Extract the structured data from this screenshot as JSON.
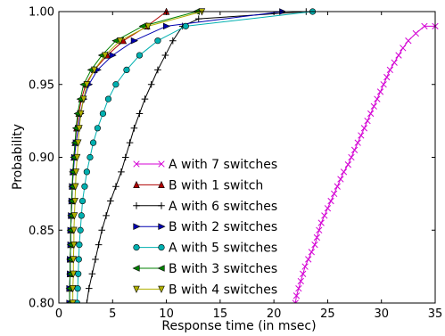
{
  "chart_data": {
    "type": "line",
    "xlabel": "Response time (in msec)",
    "ylabel": "Probability",
    "xlim": [
      0,
      35
    ],
    "ylim": [
      0.8,
      1.0
    ],
    "xticks": [
      0,
      5,
      10,
      15,
      20,
      25,
      30,
      35
    ],
    "yticks": [
      0.8,
      0.85,
      0.9,
      0.95,
      1.0
    ],
    "xtick_labels": [
      "0",
      "5",
      "10",
      "15",
      "20",
      "25",
      "30",
      "35"
    ],
    "ytick_labels": [
      "0.80",
      "0.85",
      "0.90",
      "0.95",
      "1.00"
    ],
    "grid": false,
    "legend_position": "center",
    "series": [
      {
        "name": "A with 7 switches",
        "color": "#d400d4",
        "marker": "x",
        "points": [
          [
            22.0,
            0.8
          ],
          [
            22.1,
            0.805
          ],
          [
            22.3,
            0.81
          ],
          [
            22.5,
            0.815
          ],
          [
            22.7,
            0.82
          ],
          [
            22.9,
            0.825
          ],
          [
            23.2,
            0.83
          ],
          [
            23.5,
            0.835
          ],
          [
            23.8,
            0.84
          ],
          [
            24.0,
            0.845
          ],
          [
            24.2,
            0.85
          ],
          [
            24.4,
            0.855
          ],
          [
            24.7,
            0.86
          ],
          [
            25.0,
            0.865
          ],
          [
            25.3,
            0.87
          ],
          [
            25.6,
            0.875
          ],
          [
            25.9,
            0.88
          ],
          [
            26.2,
            0.885
          ],
          [
            26.5,
            0.89
          ],
          [
            26.9,
            0.895
          ],
          [
            27.2,
            0.9
          ],
          [
            27.5,
            0.905
          ],
          [
            27.8,
            0.91
          ],
          [
            28.1,
            0.915
          ],
          [
            28.4,
            0.92
          ],
          [
            28.7,
            0.925
          ],
          [
            29.0,
            0.93
          ],
          [
            29.3,
            0.935
          ],
          [
            29.6,
            0.94
          ],
          [
            29.9,
            0.945
          ],
          [
            30.2,
            0.95
          ],
          [
            30.5,
            0.955
          ],
          [
            30.8,
            0.96
          ],
          [
            31.2,
            0.965
          ],
          [
            31.6,
            0.97
          ],
          [
            32.0,
            0.975
          ],
          [
            32.5,
            0.98
          ],
          [
            33.2,
            0.985
          ],
          [
            34.0,
            0.99
          ],
          [
            35.0,
            0.99
          ]
        ]
      },
      {
        "name": "B with 1 switch",
        "color": "#b00000",
        "marker": "^",
        "points": [
          [
            1.0,
            0.8
          ],
          [
            1.0,
            0.81
          ],
          [
            1.05,
            0.82
          ],
          [
            1.05,
            0.83
          ],
          [
            1.1,
            0.84
          ],
          [
            1.1,
            0.85
          ],
          [
            1.15,
            0.86
          ],
          [
            1.2,
            0.87
          ],
          [
            1.25,
            0.88
          ],
          [
            1.3,
            0.89
          ],
          [
            1.4,
            0.9
          ],
          [
            1.5,
            0.91
          ],
          [
            1.65,
            0.92
          ],
          [
            1.85,
            0.93
          ],
          [
            2.1,
            0.94
          ],
          [
            2.5,
            0.95
          ],
          [
            3.3,
            0.96
          ],
          [
            4.5,
            0.97
          ],
          [
            6.0,
            0.98
          ],
          [
            8.2,
            0.99
          ],
          [
            10.0,
            1.0
          ]
        ]
      },
      {
        "name": "A with 6 switches",
        "color": "#000000",
        "marker": "+",
        "points": [
          [
            2.6,
            0.8
          ],
          [
            2.8,
            0.81
          ],
          [
            3.1,
            0.82
          ],
          [
            3.4,
            0.83
          ],
          [
            3.7,
            0.84
          ],
          [
            4.0,
            0.85
          ],
          [
            4.4,
            0.86
          ],
          [
            4.8,
            0.87
          ],
          [
            5.3,
            0.88
          ],
          [
            5.8,
            0.89
          ],
          [
            6.2,
            0.9
          ],
          [
            6.6,
            0.91
          ],
          [
            7.0,
            0.92
          ],
          [
            7.5,
            0.93
          ],
          [
            8.0,
            0.94
          ],
          [
            8.6,
            0.95
          ],
          [
            9.2,
            0.96
          ],
          [
            9.9,
            0.97
          ],
          [
            10.6,
            0.98
          ],
          [
            11.5,
            0.99
          ],
          [
            13.0,
            0.995
          ],
          [
            23.0,
            1.0
          ]
        ]
      },
      {
        "name": "B with 2 switches",
        "color": "#0000b0",
        "marker": ">",
        "points": [
          [
            1.0,
            0.8
          ],
          [
            1.0,
            0.81
          ],
          [
            1.05,
            0.82
          ],
          [
            1.05,
            0.83
          ],
          [
            1.1,
            0.84
          ],
          [
            1.1,
            0.85
          ],
          [
            1.15,
            0.86
          ],
          [
            1.2,
            0.87
          ],
          [
            1.25,
            0.88
          ],
          [
            1.35,
            0.89
          ],
          [
            1.45,
            0.9
          ],
          [
            1.6,
            0.91
          ],
          [
            1.8,
            0.92
          ],
          [
            2.0,
            0.93
          ],
          [
            2.3,
            0.94
          ],
          [
            2.8,
            0.95
          ],
          [
            3.6,
            0.96
          ],
          [
            5.0,
            0.97
          ],
          [
            7.0,
            0.98
          ],
          [
            10.0,
            0.99
          ],
          [
            20.8,
            1.0
          ]
        ]
      },
      {
        "name": "A with 5 switches",
        "color": "#00b0b0",
        "marker": "o",
        "points": [
          [
            1.7,
            0.8
          ],
          [
            1.75,
            0.81
          ],
          [
            1.8,
            0.82
          ],
          [
            1.85,
            0.83
          ],
          [
            1.9,
            0.84
          ],
          [
            2.0,
            0.85
          ],
          [
            2.1,
            0.86
          ],
          [
            2.2,
            0.87
          ],
          [
            2.4,
            0.88
          ],
          [
            2.6,
            0.89
          ],
          [
            2.9,
            0.9
          ],
          [
            3.2,
            0.91
          ],
          [
            3.6,
            0.92
          ],
          [
            4.1,
            0.93
          ],
          [
            4.6,
            0.94
          ],
          [
            5.3,
            0.95
          ],
          [
            6.3,
            0.96
          ],
          [
            7.5,
            0.97
          ],
          [
            9.2,
            0.98
          ],
          [
            11.8,
            0.99
          ],
          [
            23.6,
            1.0
          ]
        ]
      },
      {
        "name": "B with 3 switches",
        "color": "#008000",
        "marker": "<",
        "points": [
          [
            1.0,
            0.8
          ],
          [
            1.0,
            0.81
          ],
          [
            1.05,
            0.82
          ],
          [
            1.05,
            0.83
          ],
          [
            1.1,
            0.84
          ],
          [
            1.1,
            0.85
          ],
          [
            1.15,
            0.86
          ],
          [
            1.2,
            0.87
          ],
          [
            1.25,
            0.88
          ],
          [
            1.3,
            0.89
          ],
          [
            1.4,
            0.9
          ],
          [
            1.5,
            0.91
          ],
          [
            1.6,
            0.92
          ],
          [
            1.75,
            0.93
          ],
          [
            2.0,
            0.94
          ],
          [
            2.3,
            0.95
          ],
          [
            3.0,
            0.96
          ],
          [
            4.0,
            0.97
          ],
          [
            5.3,
            0.98
          ],
          [
            7.8,
            0.99
          ],
          [
            12.8,
            1.0
          ]
        ]
      },
      {
        "name": "B with 4 switches",
        "color": "#b0b000",
        "marker": "v",
        "points": [
          [
            1.3,
            0.8
          ],
          [
            1.3,
            0.81
          ],
          [
            1.35,
            0.82
          ],
          [
            1.35,
            0.83
          ],
          [
            1.4,
            0.84
          ],
          [
            1.4,
            0.85
          ],
          [
            1.45,
            0.86
          ],
          [
            1.5,
            0.87
          ],
          [
            1.55,
            0.88
          ],
          [
            1.6,
            0.89
          ],
          [
            1.7,
            0.9
          ],
          [
            1.8,
            0.91
          ],
          [
            1.9,
            0.92
          ],
          [
            2.05,
            0.93
          ],
          [
            2.3,
            0.94
          ],
          [
            2.6,
            0.95
          ],
          [
            3.3,
            0.96
          ],
          [
            4.3,
            0.97
          ],
          [
            5.7,
            0.98
          ],
          [
            8.3,
            0.99
          ],
          [
            13.3,
            1.0
          ]
        ]
      }
    ]
  }
}
